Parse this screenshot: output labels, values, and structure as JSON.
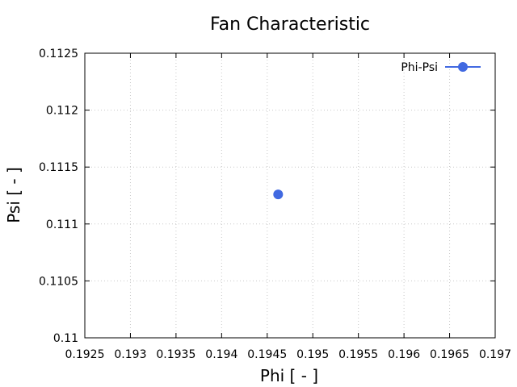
{
  "chart_data": {
    "type": "scatter",
    "title": "Fan Characteristic",
    "xlabel": "Phi [ - ]",
    "ylabel": "Psi [ - ]",
    "xlim": [
      0.1925,
      0.197
    ],
    "ylim": [
      0.11,
      0.1125
    ],
    "xticks": [
      "0.1925",
      "0.193",
      "0.1935",
      "0.194",
      "0.1945",
      "0.195",
      "0.1955",
      "0.196",
      "0.1965",
      "0.197"
    ],
    "yticks": [
      "0.11",
      "0.1105",
      "0.111",
      "0.1115",
      "0.112",
      "0.1125"
    ],
    "grid": true,
    "legend_position": "top-right",
    "series": [
      {
        "name": "Phi-Psi",
        "color": "#4169e1",
        "marker": "circle",
        "points": [
          {
            "x": 0.19462,
            "y": 0.11126
          }
        ]
      }
    ]
  }
}
